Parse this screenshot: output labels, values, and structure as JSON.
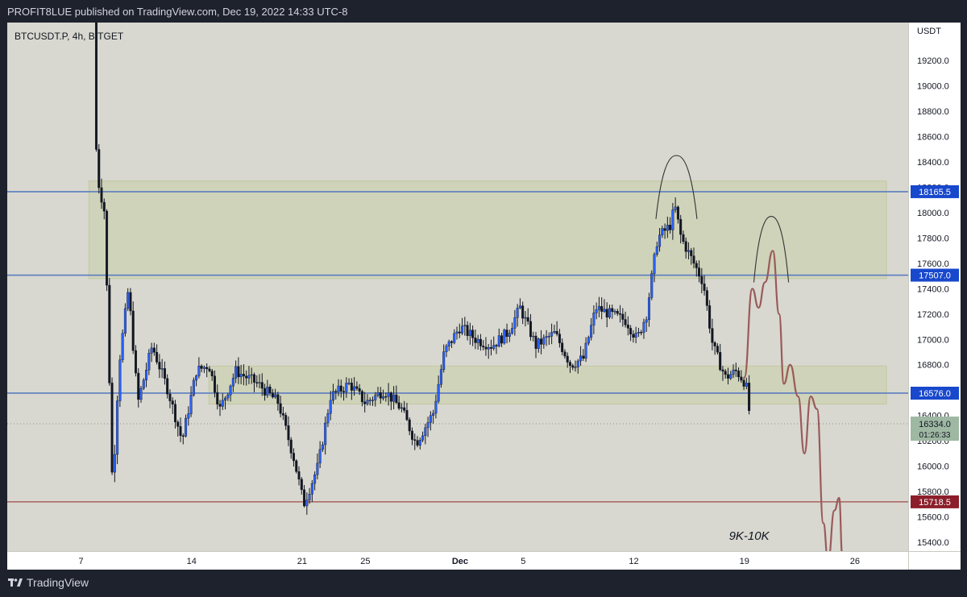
{
  "header": {
    "text": "PROFIT8LUE published on TradingView.com, Dec 19, 2022 14:33 UTC-8"
  },
  "footer": {
    "brand": "TradingView"
  },
  "colors": {
    "background": "#d8d8d0",
    "zone": "#c9cfa8",
    "up": "#2962ff",
    "down": "#131722",
    "blue_line": "#5b7dbf",
    "red_line": "#a04a4a",
    "projection": "#9a5a5a",
    "arc": "#333333"
  },
  "chart_data": {
    "type": "candlestick",
    "symbol": "BTCUSDT.P, 4h, BITGET",
    "currency": "USDT",
    "ylim": [
      15330,
      19500
    ],
    "x_ticks": [
      {
        "label": "7",
        "day": 7
      },
      {
        "label": "14",
        "day": 14
      },
      {
        "label": "21",
        "day": 21
      },
      {
        "label": "25",
        "day": 25
      },
      {
        "label": "Dec",
        "day": 31
      },
      {
        "label": "5",
        "day": 35
      },
      {
        "label": "12",
        "day": 42
      },
      {
        "label": "19",
        "day": 49
      },
      {
        "label": "26",
        "day": 56
      }
    ],
    "y_ticks": [
      19200,
      19000,
      18800,
      18600,
      18400,
      18200,
      18000,
      17800,
      17600,
      17400,
      17200,
      17000,
      16800,
      16600,
      16400,
      16200,
      16000,
      15800,
      15600,
      15400
    ],
    "y_tick_labels": [
      "19200.0",
      "19000.0",
      "18800.0",
      "18600.0",
      "18400.0",
      "18200.0",
      "18000.0",
      "17800.0",
      "17600.0",
      "17400.0",
      "17200.0",
      "17000.0",
      "16800.0",
      "16600.0",
      "16400.0",
      "16200.0",
      "16000.0",
      "15800.0",
      "15600.0",
      "15400.0"
    ],
    "zones": [
      {
        "from_day": 7.5,
        "to_day": 58,
        "low": 17480,
        "high": 18250
      },
      {
        "from_day": 15.1,
        "to_day": 58,
        "low": 16490,
        "high": 16790
      }
    ],
    "levels": [
      {
        "price": 18165.5,
        "label": "18165.5",
        "color": "blue"
      },
      {
        "price": 17507.0,
        "label": "17507.0",
        "color": "blue"
      },
      {
        "price": 16576.0,
        "label": "16576.0",
        "color": "blue"
      },
      {
        "price": 15718.5,
        "label": "15718.5",
        "color": "red"
      }
    ],
    "last_price": {
      "price": 16334,
      "label": "16334.0",
      "countdown": "01:26:33"
    },
    "anchors": [
      [
        7.8,
        19500
      ],
      [
        8.0,
        18300
      ],
      [
        8.5,
        18000
      ],
      [
        9.0,
        15800
      ],
      [
        9.4,
        16800
      ],
      [
        10.0,
        17400
      ],
      [
        10.6,
        16500
      ],
      [
        11.5,
        16950
      ],
      [
        12.5,
        16600
      ],
      [
        13.4,
        16200
      ],
      [
        14.3,
        16750
      ],
      [
        15.1,
        16800
      ],
      [
        15.8,
        16450
      ],
      [
        16.8,
        16750
      ],
      [
        18.2,
        16650
      ],
      [
        19.5,
        16500
      ],
      [
        20.5,
        16050
      ],
      [
        21.1,
        15700
      ],
      [
        22.0,
        16000
      ],
      [
        22.8,
        16550
      ],
      [
        24.0,
        16650
      ],
      [
        25.0,
        16500
      ],
      [
        26.2,
        16600
      ],
      [
        27.3,
        16450
      ],
      [
        28.2,
        16180
      ],
      [
        29.3,
        16420
      ],
      [
        30.0,
        16900
      ],
      [
        31.0,
        17100
      ],
      [
        32.0,
        17000
      ],
      [
        33.0,
        16950
      ],
      [
        34.0,
        17050
      ],
      [
        34.8,
        17250
      ],
      [
        35.8,
        16950
      ],
      [
        37.0,
        17050
      ],
      [
        38.0,
        16800
      ],
      [
        38.8,
        16850
      ],
      [
        39.6,
        17250
      ],
      [
        40.5,
        17200
      ],
      [
        41.5,
        17150
      ],
      [
        42.2,
        17000
      ],
      [
        42.8,
        17200
      ],
      [
        43.5,
        17800
      ],
      [
        44.3,
        17900
      ],
      [
        44.6,
        18050
      ],
      [
        45.0,
        17800
      ],
      [
        45.8,
        17600
      ],
      [
        46.4,
        17450
      ],
      [
        47.0,
        16950
      ],
      [
        47.8,
        16700
      ],
      [
        48.5,
        16750
      ],
      [
        49.1,
        16650
      ],
      [
        49.4,
        16334
      ]
    ],
    "projection": [
      [
        49.0,
        16700
      ],
      [
        49.5,
        17400
      ],
      [
        49.9,
        17250
      ],
      [
        50.3,
        17450
      ],
      [
        50.8,
        17700
      ],
      [
        51.2,
        17200
      ],
      [
        51.5,
        16650
      ],
      [
        51.9,
        16800
      ],
      [
        52.4,
        16550
      ],
      [
        52.8,
        16100
      ],
      [
        53.2,
        16550
      ],
      [
        53.6,
        16450
      ],
      [
        54.0,
        15550
      ],
      [
        54.3,
        15250
      ],
      [
        54.7,
        15650
      ],
      [
        55.0,
        15750
      ],
      [
        55.2,
        15300
      ]
    ],
    "arcs": [
      {
        "center_day": 44.7,
        "peak": 18450,
        "half_width_days": 1.3,
        "base": 17950
      },
      {
        "center_day": 50.7,
        "peak": 17970,
        "half_width_days": 1.1,
        "base": 17450
      }
    ],
    "annotation": {
      "text": "9K-10K",
      "day": 49.3,
      "price": 15420
    }
  }
}
